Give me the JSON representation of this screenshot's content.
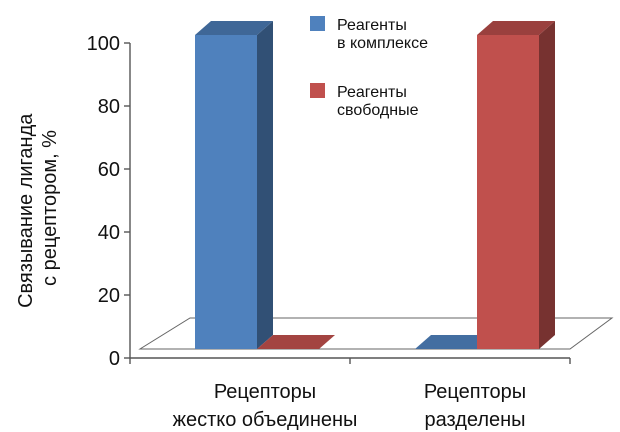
{
  "chart_data": {
    "type": "bar",
    "title": "",
    "xlabel": "",
    "ylabel": [
      "Связывание лиганда",
      "с рецептором, %"
    ],
    "ylim": [
      0,
      100
    ],
    "yticks": [
      0,
      20,
      40,
      60,
      80,
      100
    ],
    "categories": [
      [
        "Рецепторы",
        "жестко объединены"
      ],
      [
        "Рецепторы",
        "разделены"
      ]
    ],
    "series": [
      {
        "name": [
          "Реагенты",
          "в комплексе"
        ],
        "values": [
          100,
          0
        ],
        "color": "#4f81bd"
      },
      {
        "name": [
          "Реагенты",
          "свободные"
        ],
        "values": [
          0,
          100
        ],
        "color": "#c0504d"
      }
    ],
    "legend_position": "top-right",
    "grid": false,
    "style": "3d-column"
  }
}
